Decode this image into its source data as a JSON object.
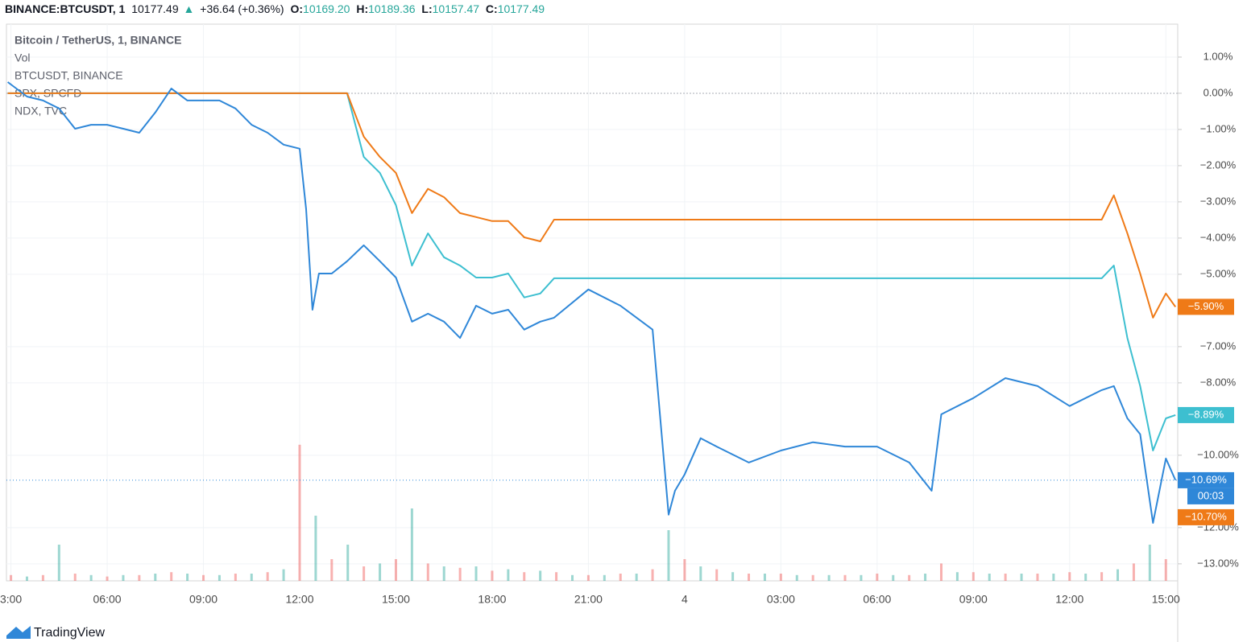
{
  "header": {
    "symbol": "BINANCE:BTCUSDT, 1",
    "price": "10177.49",
    "arrow": "▲",
    "change": "+36.64 (+0.36%)",
    "ohlc": [
      {
        "key": "O:",
        "value": "10169.20"
      },
      {
        "key": "H:",
        "value": "10189.36"
      },
      {
        "key": "L:",
        "value": "10157.47"
      },
      {
        "key": "C:",
        "value": "10177.49"
      }
    ]
  },
  "chart_data": {
    "type": "line",
    "title": "Bitcoin / TetherUS, 1, BINANCE",
    "x": [
      2.9,
      3.5,
      4,
      4.5,
      5,
      5.5,
      6,
      6.5,
      7,
      7.5,
      8,
      8.5,
      9,
      9.5,
      10,
      10.5,
      11,
      11.5,
      12,
      12.2,
      12.4,
      12.6,
      13,
      13.48,
      14,
      14.5,
      15,
      15.5,
      16,
      16.5,
      17,
      17.5,
      18,
      18.5,
      19,
      19.5,
      19.93,
      21,
      22,
      23,
      23.5,
      23.7,
      24,
      24.5,
      25,
      26,
      27,
      28,
      29,
      30,
      31,
      31.7,
      32,
      33,
      34,
      35,
      36,
      37,
      37.38,
      37.8,
      38.2,
      38.6,
      39,
      39.3
    ],
    "series": [
      {
        "name": "BTCUSDT, BINANCE",
        "color": "#2f87d8",
        "values": [
          0.31,
          -0.09,
          -0.2,
          -0.42,
          -0.98,
          -0.87,
          -0.87,
          -0.98,
          -1.09,
          -0.53,
          0.13,
          -0.2,
          -0.2,
          -0.2,
          -0.42,
          -0.87,
          -1.09,
          -1.42,
          -1.53,
          -3.2,
          -5.98,
          -4.98,
          -4.98,
          -4.64,
          -4.2,
          -4.64,
          -5.09,
          -6.31,
          -6.09,
          -6.31,
          -6.76,
          -5.87,
          -6.09,
          -5.98,
          -6.53,
          -6.31,
          -6.2,
          -5.42,
          -5.87,
          -6.53,
          -11.64,
          -10.98,
          -10.53,
          -9.53,
          -9.76,
          -10.2,
          -9.87,
          -9.64,
          -9.76,
          -9.76,
          -10.2,
          -10.98,
          -8.87,
          -8.42,
          -7.87,
          -8.09,
          -8.64,
          -8.2,
          -8.09,
          -8.98,
          -9.42,
          -11.87,
          -10.09,
          -10.69
        ]
      },
      {
        "name": "SPX, SPCFD",
        "color": "#ef7a17",
        "values": [
          0,
          0,
          0,
          0,
          0,
          0,
          0,
          0,
          0,
          0,
          0,
          0,
          0,
          0,
          0,
          0,
          0,
          0,
          0,
          0,
          0,
          0,
          0,
          0,
          -1.2,
          -1.76,
          -2.2,
          -3.31,
          -2.64,
          -2.87,
          -3.31,
          -3.42,
          -3.53,
          -3.53,
          -3.98,
          -4.09,
          -3.49,
          -3.49,
          -3.49,
          -3.49,
          -3.49,
          -3.49,
          -3.49,
          -3.49,
          -3.49,
          -3.49,
          -3.49,
          -3.49,
          -3.49,
          -3.49,
          -3.49,
          -3.49,
          -3.49,
          -3.49,
          -3.49,
          -3.49,
          -3.49,
          -3.49,
          -2.82,
          -3.87,
          -4.98,
          -6.2,
          -5.53,
          -5.9
        ]
      },
      {
        "name": "NDX, TVC",
        "color": "#3dbfd0",
        "values": [
          0,
          0,
          0,
          0,
          0,
          0,
          0,
          0,
          0,
          0,
          0,
          0,
          0,
          0,
          0,
          0,
          0,
          0,
          0,
          0,
          0,
          0,
          0,
          0,
          -1.76,
          -2.2,
          -3.09,
          -4.76,
          -3.87,
          -4.53,
          -4.76,
          -5.09,
          -5.09,
          -4.98,
          -5.64,
          -5.53,
          -5.11,
          -5.11,
          -5.11,
          -5.11,
          -5.11,
          -5.11,
          -5.11,
          -5.11,
          -5.11,
          -5.11,
          -5.11,
          -5.11,
          -5.11,
          -5.11,
          -5.11,
          -5.11,
          -5.11,
          -5.11,
          -5.11,
          -5.11,
          -5.11,
          -5.11,
          -4.76,
          -6.76,
          -8.09,
          -9.87,
          -8.98,
          -8.89
        ]
      }
    ],
    "xlim": [
      2.86,
      39.37
    ],
    "xticks": [
      {
        "value": 3,
        "label": "3:00"
      },
      {
        "value": 6,
        "label": "06:00"
      },
      {
        "value": 9,
        "label": "09:00"
      },
      {
        "value": 12,
        "label": "12:00"
      },
      {
        "value": 15,
        "label": "15:00"
      },
      {
        "value": 18,
        "label": "18:00"
      },
      {
        "value": 21,
        "label": "21:00"
      },
      {
        "value": 24,
        "label": "4"
      },
      {
        "value": 27,
        "label": "03:00"
      },
      {
        "value": 30,
        "label": "06:00"
      },
      {
        "value": 33,
        "label": "09:00"
      },
      {
        "value": 36,
        "label": "12:00"
      },
      {
        "value": 39,
        "label": "15:00"
      }
    ],
    "ylim": [
      -13.47,
      1.91
    ],
    "yticks": [
      {
        "value": 1,
        "label": "1.00%"
      },
      {
        "value": 0,
        "label": "0.00%"
      },
      {
        "value": -1,
        "label": "−1.00%"
      },
      {
        "value": -2,
        "label": "−2.00%"
      },
      {
        "value": -3,
        "label": "−3.00%"
      },
      {
        "value": -4,
        "label": "−4.00%"
      },
      {
        "value": -5,
        "label": "−5.00%"
      },
      {
        "value": -7,
        "label": "−7.00%"
      },
      {
        "value": -8,
        "label": "−8.00%"
      },
      {
        "value": -10,
        "label": "−10.00%"
      },
      {
        "value": -12,
        "label": "−12.00%"
      },
      {
        "value": -13,
        "label": "−13.00%"
      }
    ],
    "grid": true,
    "volume": {
      "name": "Vol",
      "ylim": [
        0,
        100
      ],
      "x": [
        3,
        3.5,
        4,
        4.5,
        5,
        5.5,
        6,
        6.5,
        7,
        7.5,
        8,
        8.5,
        9,
        9.5,
        10,
        10.5,
        11,
        11.5,
        12,
        12.5,
        13,
        13.5,
        14,
        14.5,
        15,
        15.5,
        16,
        16.5,
        17,
        17.5,
        18,
        18.5,
        19,
        19.5,
        20,
        20.5,
        21,
        21.5,
        22,
        22.5,
        23,
        23.5,
        24,
        24.5,
        25,
        25.5,
        26,
        26.5,
        27,
        27.5,
        28,
        28.5,
        29,
        29.5,
        30,
        30.5,
        31,
        31.5,
        32,
        32.5,
        33,
        33.5,
        34,
        34.5,
        35,
        35.5,
        36,
        36.5,
        37,
        37.5,
        38,
        38.5,
        39
      ],
      "values": [
        4,
        3,
        4,
        25,
        5,
        4,
        3,
        4,
        4,
        5,
        6,
        5,
        4,
        4,
        5,
        5,
        6,
        8,
        94,
        45,
        15,
        25,
        10,
        12,
        15,
        50,
        12,
        10,
        9,
        10,
        7,
        8,
        6,
        7,
        6,
        4,
        4,
        4,
        5,
        5,
        8,
        35,
        15,
        10,
        8,
        6,
        5,
        5,
        5,
        4,
        4,
        4,
        4,
        4,
        5,
        4,
        4,
        5,
        12,
        6,
        6,
        5,
        5,
        5,
        5,
        5,
        6,
        5,
        6,
        8,
        12,
        25,
        15
      ]
    },
    "badges": [
      {
        "value": -5.9,
        "label": "−5.90%",
        "color": "#ef7a17"
      },
      {
        "value": -8.89,
        "label": "−8.89%",
        "color": "#3dbfd0"
      },
      {
        "value": -10.69,
        "label": "−10.69%",
        "color": "#2f87d8"
      },
      {
        "value": -10.7,
        "label": "−10.70%",
        "color": "#ef7a17"
      }
    ],
    "countdown": "00:03"
  },
  "footer": {
    "brand": "TradingView"
  }
}
